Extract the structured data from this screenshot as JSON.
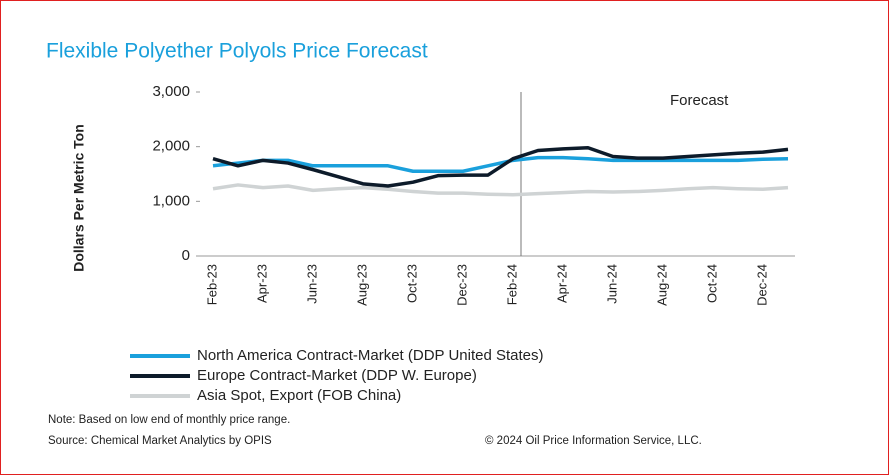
{
  "chart_data": {
    "type": "line",
    "title": "Flexible Polyether Polyols Price Forecast",
    "ylabel": "Dollars Per Metric Ton",
    "annotation": "Forecast",
    "categories": [
      "Feb-23",
      null,
      "Apr-23",
      null,
      "Jun-23",
      null,
      "Aug-23",
      null,
      "Oct-23",
      null,
      "Dec-23",
      null,
      "Feb-24",
      null,
      "Apr-24",
      null,
      "Jun-24",
      null,
      "Aug-24",
      null,
      "Oct-24",
      null,
      "Dec-24",
      null
    ],
    "series": [
      {
        "name": "North America Contract-Market (DDP United States)",
        "color": "#1aa0dc",
        "values": [
          1650,
          1700,
          1750,
          1750,
          1650,
          1650,
          1650,
          1650,
          1550,
          1550,
          1550,
          1650,
          1750,
          1800,
          1800,
          1780,
          1750,
          1750,
          1750,
          1750,
          1750,
          1750,
          1770,
          1780
        ]
      },
      {
        "name": "Europe Contract-Market (DDP W. Europe)",
        "color": "#0d1b2a",
        "values": [
          1780,
          1650,
          1750,
          1700,
          1580,
          1450,
          1320,
          1280,
          1350,
          1470,
          1480,
          1480,
          1780,
          1930,
          1960,
          1980,
          1820,
          1790,
          1790,
          1820,
          1850,
          1880,
          1900,
          1950
        ]
      },
      {
        "name": "Asia Spot, Export (FOB China)",
        "color": "#cfd3d4",
        "values": [
          1230,
          1300,
          1250,
          1280,
          1200,
          1230,
          1250,
          1220,
          1180,
          1150,
          1150,
          1130,
          1120,
          1140,
          1160,
          1180,
          1170,
          1180,
          1200,
          1230,
          1250,
          1230,
          1220,
          1250
        ]
      }
    ],
    "ylim": [
      0,
      3000
    ],
    "yticks": [
      0,
      {
        "value": 1000,
        "label": "1,000"
      },
      {
        "value": 2000,
        "label": "2,000"
      },
      {
        "value": 3000,
        "label": "3,000"
      }
    ],
    "notes": [
      "Note: Based on low end of monthly price range.",
      "Source: Chemical Market Analytics by OPIS"
    ],
    "copyright": "© 2024 Oil Price Information Service, LLC."
  }
}
